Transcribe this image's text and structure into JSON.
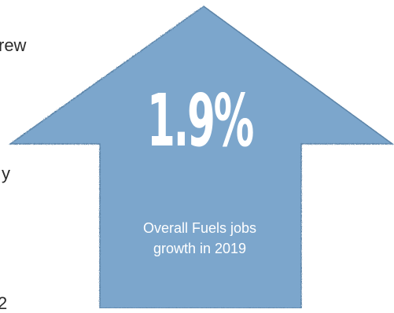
{
  "left_text_fragments": [
    "rew",
    "y",
    "2"
  ],
  "infographic": {
    "arrow_color": "#7ba6cc",
    "arrow_edge_color": "#5c84a8",
    "stat_value": "1.9%",
    "caption_line1": "Overall Fuels jobs",
    "caption_line2": "growth in 2019"
  }
}
